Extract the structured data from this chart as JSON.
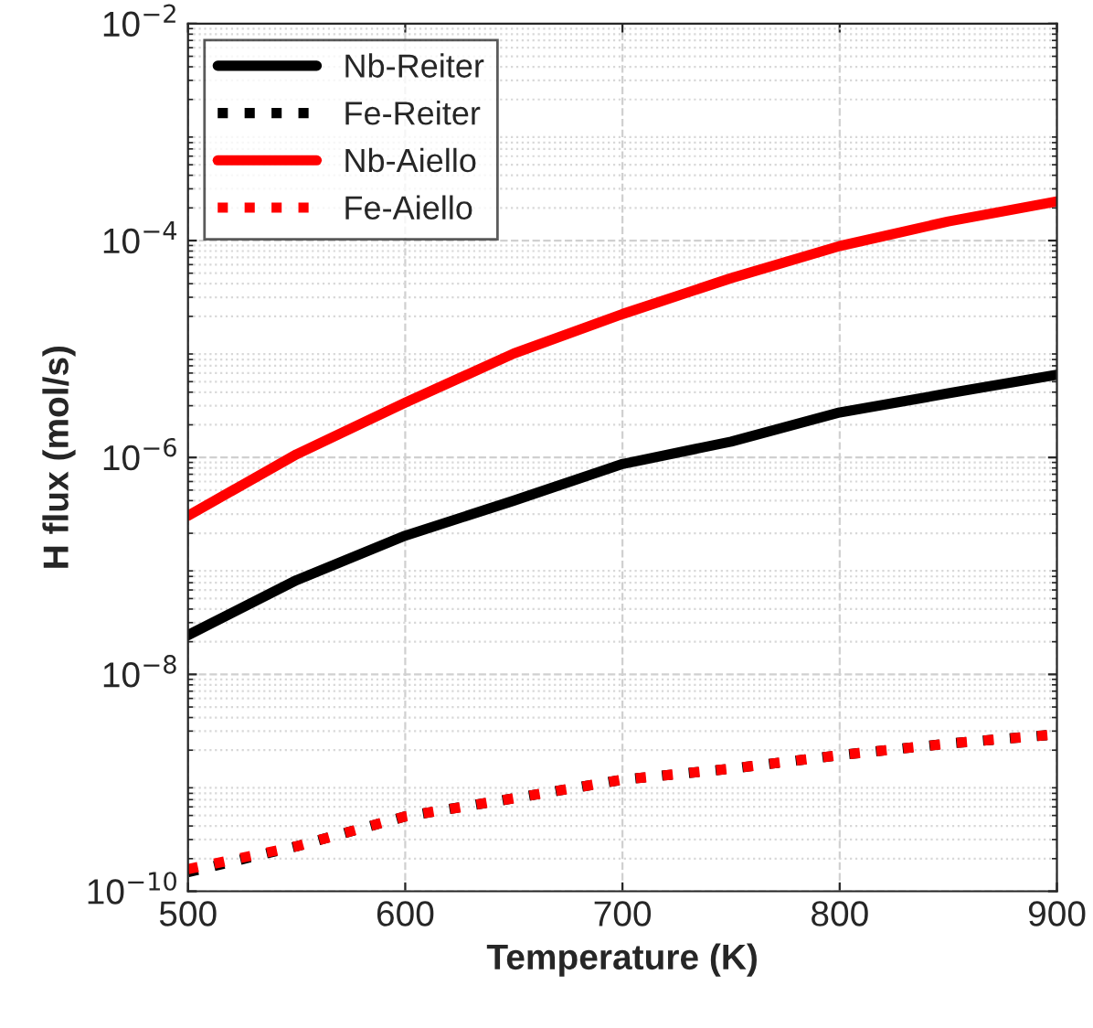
{
  "chart_data": {
    "type": "line",
    "xlabel": "Temperature (K)",
    "ylabel": "H flux (mol/s)",
    "x": [
      500,
      550,
      600,
      650,
      700,
      750,
      800,
      850,
      900
    ],
    "series": [
      {
        "name": "Nb-Reiter",
        "color": "#000000",
        "line_style": "solid",
        "values": [
          2.3e-08,
          7.4e-08,
          1.9e-07,
          4e-07,
          8.7e-07,
          1.4e-06,
          2.6e-06,
          3.9e-06,
          5.8e-06
        ]
      },
      {
        "name": "Fe-Reiter",
        "color": "#000000",
        "line_style": "dotted",
        "values": [
          1.5e-10,
          2.6e-10,
          4.9e-10,
          7.2e-10,
          1.07e-09,
          1.35e-09,
          1.8e-09,
          2.3e-09,
          2.8e-09
        ]
      },
      {
        "name": "Nb-Aiello",
        "color": "#ff0000",
        "line_style": "solid",
        "values": [
          2.9e-07,
          1.07e-06,
          3.2e-06,
          9.1e-06,
          2.1e-05,
          4.5e-05,
          8.9e-05,
          0.00015,
          0.00023
        ]
      },
      {
        "name": "Fe-Aiello",
        "color": "#ff0000",
        "line_style": "dotted",
        "values": [
          1.6e-10,
          2.6e-10,
          4.9e-10,
          7.2e-10,
          1.07e-09,
          1.35e-09,
          1.8e-09,
          2.3e-09,
          2.8e-09
        ]
      }
    ],
    "log": "y",
    "xlim": [
      500,
      900
    ],
    "xticks": [
      500,
      600,
      700,
      800,
      900
    ],
    "ylim": [
      1e-10,
      0.01
    ],
    "yticks": [
      {
        "value": 1e-10,
        "label": "10$^{−10}$"
      },
      {
        "value": 1e-08,
        "label": "10$^{−8}$"
      },
      {
        "value": 1e-06,
        "label": "10$^{−6}$"
      },
      {
        "value": 0.0001,
        "label": "10$^{−4}$"
      },
      {
        "value": 0.01,
        "label": "10$^{−2}$"
      }
    ],
    "grid": true,
    "legend": "top left",
    "marker": "none"
  }
}
